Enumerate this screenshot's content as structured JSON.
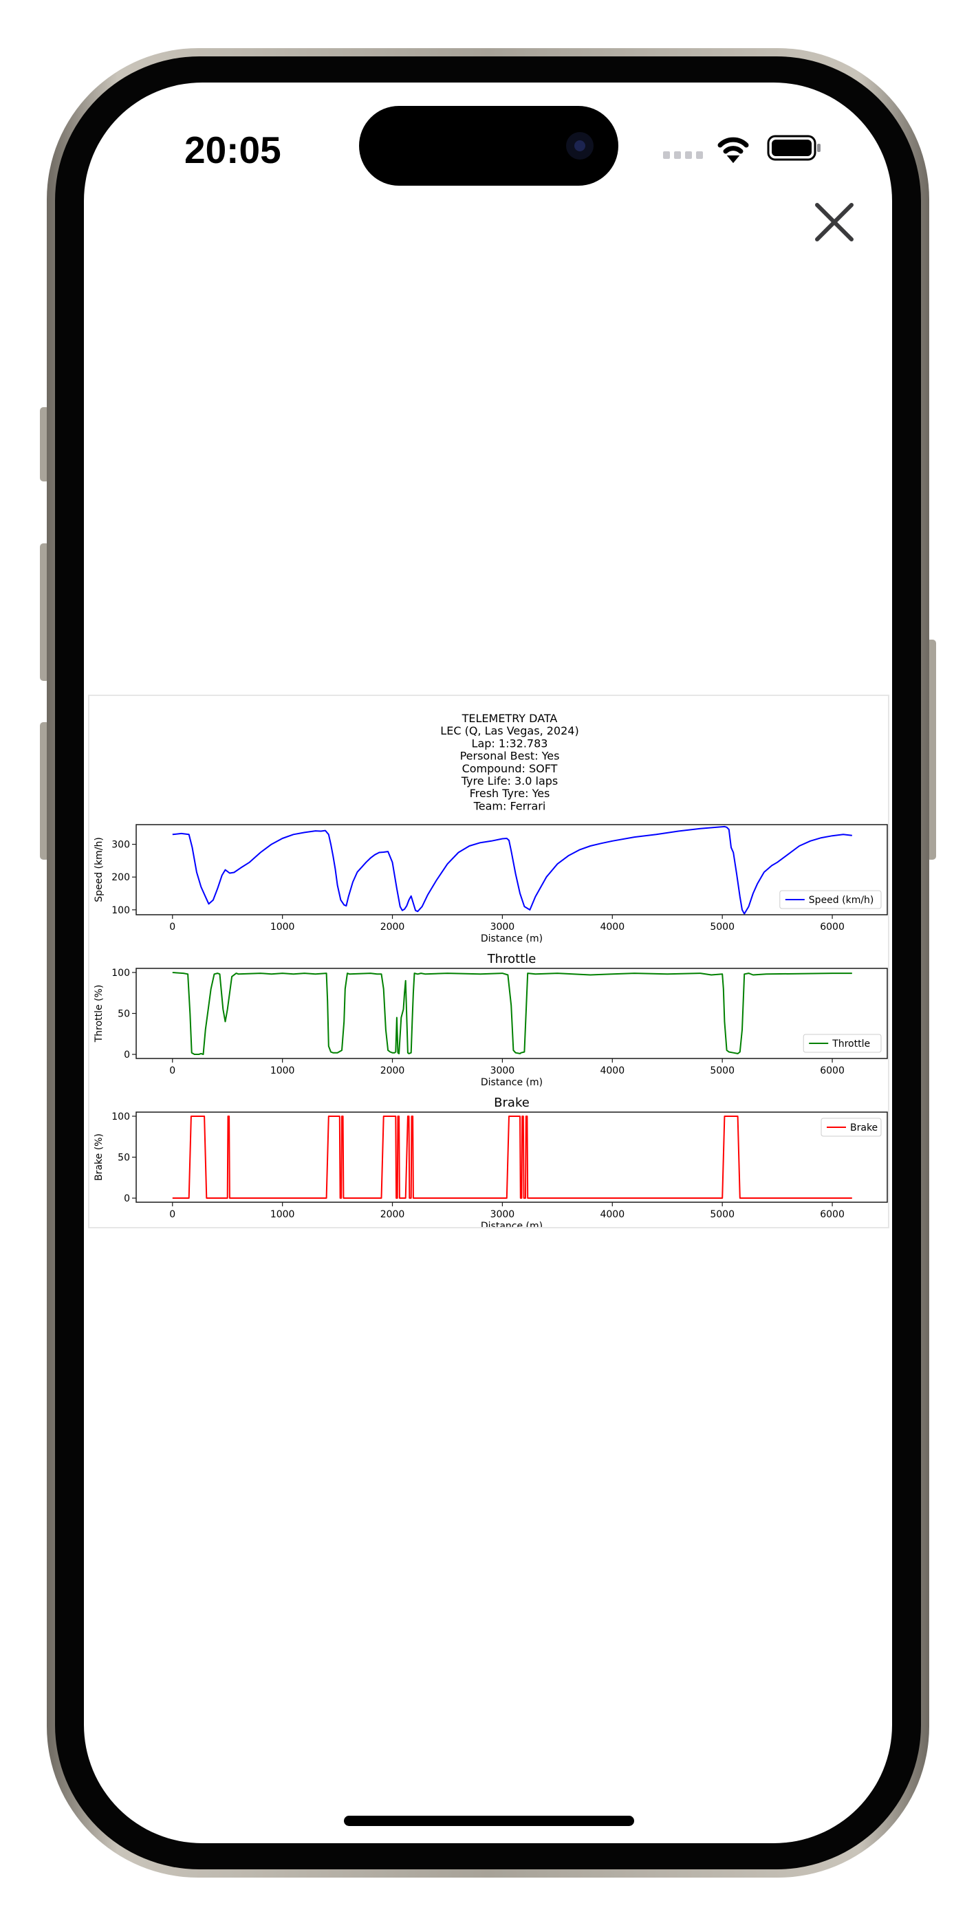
{
  "status_bar": {
    "time": "20:05"
  },
  "modal": {
    "close_label": "Close"
  },
  "figure": {
    "header_lines": [
      "TELEMETRY DATA",
      "LEC (Q, Las Vegas, 2024)",
      "Lap: 1:32.783",
      "Personal Best: Yes",
      "Compound: SOFT",
      "Tyre Life: 3.0 laps",
      "Fresh Tyre: Yes",
      "Team: Ferrari"
    ]
  },
  "colors": {
    "speed": "#0000ff",
    "throttle": "#008000",
    "brake": "#ff0000",
    "frame": "#1a1a1a",
    "accent_icon": "#3a3a3c"
  },
  "chart_data": [
    {
      "type": "line",
      "title": "",
      "xlabel": "Distance (m)",
      "ylabel": "Speed (km/h)",
      "xlim": [
        -330,
        6500
      ],
      "ylim": [
        85,
        360
      ],
      "xticks": [
        0,
        1000,
        2000,
        3000,
        4000,
        5000,
        6000
      ],
      "yticks": [
        100,
        200,
        300
      ],
      "legend": "lower-right",
      "series": [
        {
          "name": "Speed (km/h)",
          "color": "#0000ff",
          "x": [
            0,
            80,
            150,
            180,
            220,
            260,
            300,
            330,
            370,
            410,
            450,
            480,
            520,
            560,
            620,
            700,
            800,
            900,
            1000,
            1100,
            1200,
            1300,
            1350,
            1390,
            1420,
            1440,
            1460,
            1480,
            1500,
            1530,
            1560,
            1580,
            1600,
            1640,
            1680,
            1720,
            1760,
            1800,
            1840,
            1880,
            1920,
            1960,
            2000,
            2040,
            2070,
            2090,
            2110,
            2130,
            2150,
            2170,
            2190,
            2210,
            2230,
            2270,
            2320,
            2400,
            2500,
            2600,
            2700,
            2800,
            2900,
            3000,
            3040,
            3060,
            3080,
            3120,
            3160,
            3200,
            3250,
            3300,
            3400,
            3500,
            3600,
            3700,
            3800,
            3900,
            4000,
            4200,
            4400,
            4600,
            4800,
            4950,
            5020,
            5040,
            5060,
            5080,
            5100,
            5130,
            5160,
            5180,
            5200,
            5240,
            5280,
            5320,
            5380,
            5450,
            5500,
            5600,
            5700,
            5800,
            5900,
            6000,
            6100,
            6180
          ],
          "values": [
            330,
            333,
            330,
            290,
            215,
            170,
            140,
            118,
            130,
            165,
            205,
            222,
            212,
            214,
            228,
            245,
            275,
            300,
            318,
            330,
            336,
            341,
            340,
            342,
            330,
            300,
            265,
            225,
            175,
            130,
            115,
            112,
            140,
            185,
            215,
            230,
            245,
            258,
            268,
            275,
            276,
            278,
            245,
            165,
            110,
            98,
            102,
            112,
            130,
            142,
            120,
            98,
            95,
            110,
            145,
            190,
            240,
            275,
            295,
            305,
            310,
            317,
            318,
            312,
            280,
            210,
            150,
            110,
            100,
            140,
            200,
            240,
            265,
            283,
            295,
            303,
            310,
            322,
            330,
            340,
            348,
            352,
            354,
            352,
            345,
            290,
            275,
            210,
            140,
            100,
            88,
            110,
            150,
            180,
            215,
            235,
            245,
            270,
            295,
            310,
            320,
            326,
            330,
            327
          ]
        }
      ]
    },
    {
      "type": "line",
      "title": "Throttle",
      "xlabel": "Distance (m)",
      "ylabel": "Throttle (%)",
      "xlim": [
        -330,
        6500
      ],
      "ylim": [
        -5,
        105
      ],
      "xticks": [
        0,
        1000,
        2000,
        3000,
        4000,
        5000,
        6000
      ],
      "yticks": [
        0,
        50,
        100
      ],
      "legend": "lower-right",
      "series": [
        {
          "name": "Throttle",
          "color": "#008000",
          "x": [
            0,
            100,
            140,
            160,
            175,
            200,
            240,
            260,
            280,
            300,
            330,
            350,
            380,
            410,
            430,
            460,
            480,
            500,
            520,
            540,
            580,
            600,
            800,
            900,
            1000,
            1100,
            1200,
            1300,
            1400,
            1410,
            1420,
            1440,
            1460,
            1500,
            1540,
            1560,
            1570,
            1590,
            1610,
            1800,
            1860,
            1900,
            1920,
            1940,
            1960,
            1980,
            2000,
            2020,
            2030,
            2040,
            2050,
            2060,
            2080,
            2100,
            2110,
            2120,
            2140,
            2150,
            2170,
            2180,
            2190,
            2200,
            2230,
            2260,
            2300,
            2500,
            2800,
            3000,
            3050,
            3080,
            3100,
            3120,
            3160,
            3170,
            3200,
            3230,
            3300,
            3500,
            3800,
            4000,
            4200,
            4500,
            4800,
            4900,
            5000,
            5010,
            5020,
            5040,
            5060,
            5100,
            5140,
            5160,
            5180,
            5200,
            5240,
            5280,
            5400,
            6000,
            6180
          ],
          "values": [
            100,
            99,
            98,
            50,
            2,
            0,
            0,
            1,
            0,
            30,
            60,
            80,
            98,
            99,
            98,
            55,
            40,
            55,
            75,
            95,
            99,
            98,
            99,
            98,
            99,
            98,
            99,
            98,
            99,
            65,
            10,
            3,
            2,
            2,
            5,
            40,
            80,
            99,
            98,
            99,
            98,
            98,
            80,
            30,
            5,
            3,
            2,
            2,
            3,
            45,
            2,
            1,
            45,
            55,
            75,
            90,
            2,
            1,
            2,
            40,
            75,
            99,
            98,
            99,
            98,
            99,
            98,
            99,
            97,
            60,
            5,
            2,
            1,
            2,
            3,
            99,
            98,
            99,
            97,
            98,
            99,
            98,
            99,
            97,
            98,
            80,
            40,
            5,
            3,
            2,
            1,
            3,
            30,
            98,
            99,
            97,
            98,
            99,
            99
          ]
        }
      ]
    },
    {
      "type": "line",
      "title": "Brake",
      "xlabel": "Distance (m)",
      "ylabel": "Brake (%)",
      "xlim": [
        -330,
        6500
      ],
      "ylim": [
        -5,
        105
      ],
      "xticks": [
        0,
        1000,
        2000,
        3000,
        4000,
        5000,
        6000
      ],
      "yticks": [
        0,
        50,
        100
      ],
      "legend": "upper-right",
      "series": [
        {
          "name": "Brake",
          "color": "#ff0000",
          "x": [
            0,
            150,
            170,
            290,
            310,
            500,
            505,
            515,
            520,
            1400,
            1420,
            1520,
            1525,
            1535,
            1540,
            1550,
            1555,
            1560,
            1900,
            1920,
            2030,
            2035,
            2045,
            2050,
            2060,
            2065,
            2120,
            2140,
            2150,
            2155,
            2170,
            2175,
            2185,
            2190,
            2200,
            3040,
            3060,
            3160,
            3165,
            3175,
            3180,
            3190,
            3195,
            3210,
            3215,
            3225,
            3230,
            5000,
            5020,
            5140,
            5160,
            6180
          ],
          "values": [
            0,
            0,
            100,
            100,
            0,
            0,
            100,
            100,
            0,
            0,
            100,
            100,
            0,
            0,
            100,
            100,
            0,
            0,
            0,
            100,
            100,
            0,
            0,
            100,
            100,
            0,
            0,
            100,
            100,
            0,
            0,
            100,
            100,
            0,
            0,
            0,
            100,
            100,
            0,
            0,
            100,
            100,
            0,
            0,
            100,
            100,
            0,
            0,
            100,
            100,
            0,
            0
          ]
        }
      ]
    }
  ]
}
